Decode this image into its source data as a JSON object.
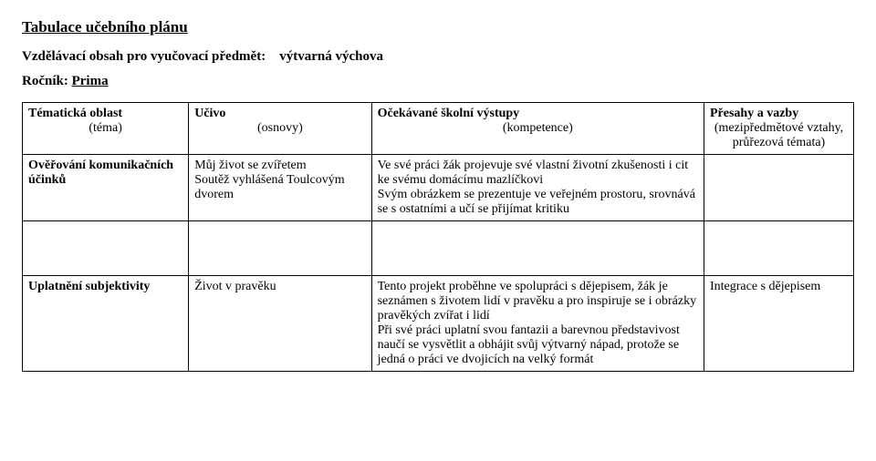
{
  "title": "Tabulace učebního plánu",
  "subtitle_label": "Vzdělávací obsah pro vyučovací předmět:",
  "subtitle_value": "výtvarná výchova",
  "grade_label": "Ročník:",
  "grade_value": "Prima",
  "headers": {
    "col1": "Tématická oblast",
    "col1_sub": "(téma)",
    "col2": "Učivo",
    "col2_sub": "(osnovy)",
    "col3": "Očekávané školní výstupy",
    "col3_sub": "(kompetence)",
    "col4": "Přesahy a vazby",
    "col4_sub": "(mezipředmětové vztahy, průřezová témata)"
  },
  "rows": [
    {
      "topic": "Ověřování komunikačních účinků",
      "content": "Můj život se zvířetem\n Soutěž vyhlášená Toulcovým dvorem",
      "outcomes": "Ve své práci žák projevuje své vlastní životní zkušenosti i cit ke svému domácímu mazlíčkovi\nSvým obrázkem se prezentuje ve veřejném prostoru, srovnává se s ostatními a učí se přijímat kritiku",
      "cross": ""
    },
    {
      "topic": "Uplatnění subjektivity",
      "content": "Život v pravěku",
      "outcomes": "Tento projekt proběhne ve spolupráci s dějepisem, žák je seznámen s životem lidí v pravěku a pro inspiruje se  i  obrázky pravěkých zvířat i lidí\nPři své práci uplatní svou fantazii a barevnou představivost naučí se vysvětlit a obhájit svůj výtvarný nápad, protože se jedná o práci ve dvojicích na velký formát",
      "cross": "Integrace s dějepisem"
    }
  ]
}
